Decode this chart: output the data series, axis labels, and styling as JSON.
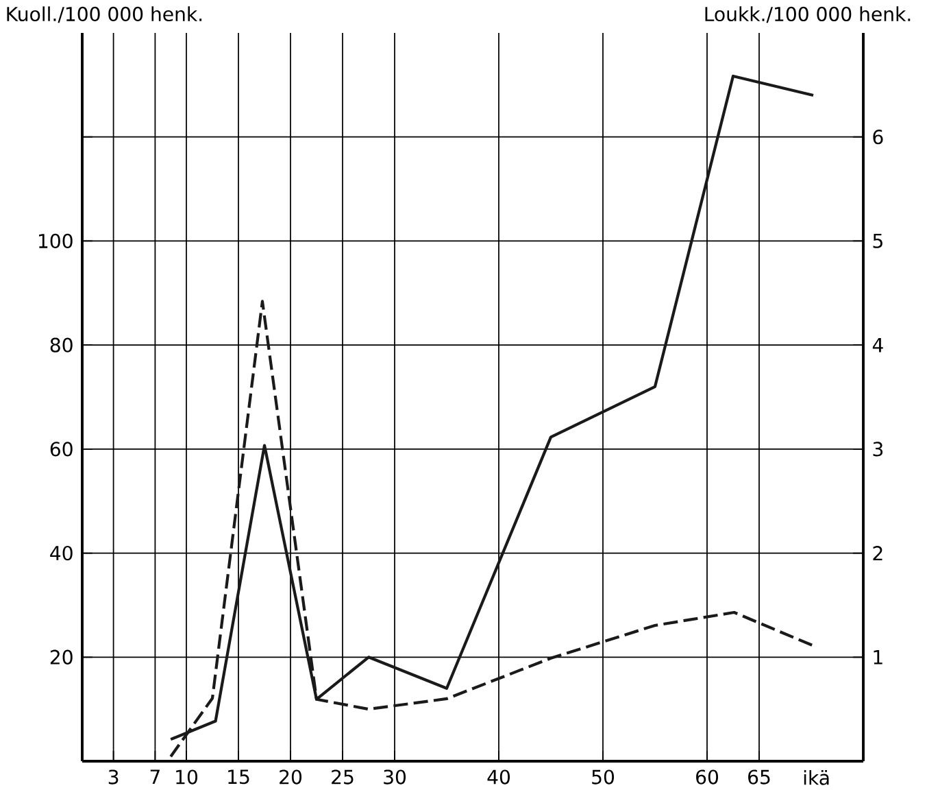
{
  "chart_data": {
    "type": "line",
    "ylabel": "Kuoll./100 000 henk.",
    "y2label": "Loukk./100 000 henk.",
    "xlabel": "ikä",
    "xlim": [
      0,
      75
    ],
    "xticks": [
      3,
      7,
      10,
      15,
      20,
      25,
      30,
      40,
      50,
      60,
      65
    ],
    "ylim": [
      0,
      140
    ],
    "yticks": [
      20,
      40,
      60,
      80,
      100,
      {
        "value": 120,
        "label": null
      }
    ],
    "y2lim": [
      0,
      7
    ],
    "y2ticks": [
      1,
      2,
      3,
      4,
      5,
      6
    ],
    "grid": true,
    "series": [
      {
        "color": "#1a1a1a",
        "line_style": "solid",
        "x": [
          8.5,
          12.8,
          17.5,
          22.5,
          27.5,
          35,
          45,
          55,
          62.5,
          70.2
        ],
        "values": [
          4.2,
          7.7,
          60.7,
          11.9,
          20,
          14,
          62.3,
          72,
          131.7,
          128
        ]
      },
      {
        "color": "#1a1a1a",
        "line_style": "dashed",
        "x": [
          8.5,
          12.5,
          17.3,
          22.5,
          27.5,
          35,
          45,
          55,
          62.6,
          70.2
        ],
        "values": [
          0.9,
          12.1,
          88.4,
          11.9,
          10,
          12,
          19.8,
          26.1,
          28.6,
          22.2
        ]
      }
    ]
  }
}
